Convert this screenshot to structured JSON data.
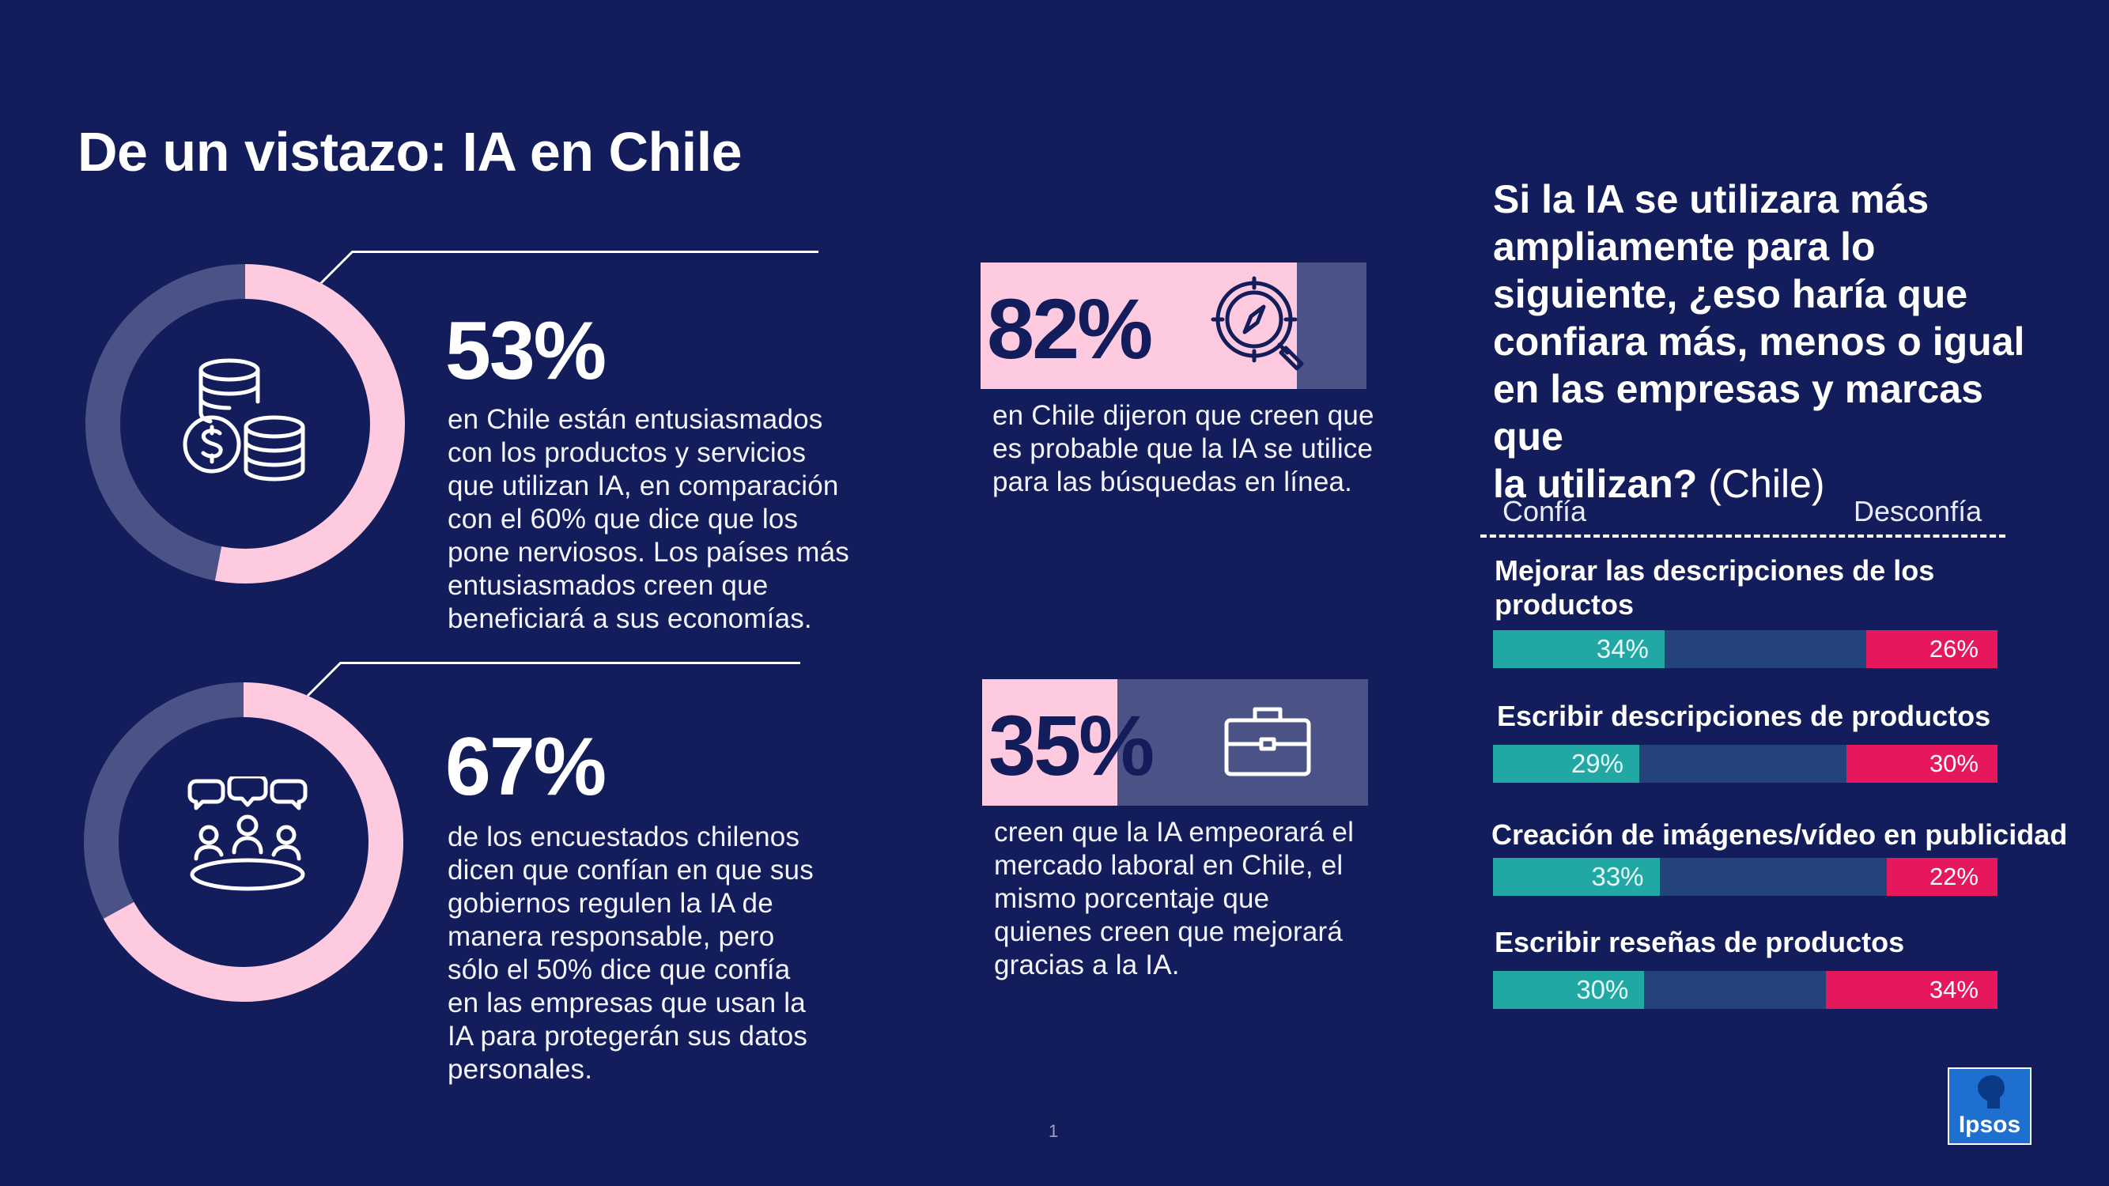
{
  "title": "De un vistazo: IA en Chile",
  "colors": {
    "background": "#131d5c",
    "pink": "#fdcadf",
    "slate": "#4a5286",
    "teal": "#22a8a4",
    "mid": "#23437a",
    "red": "#e6175a"
  },
  "stat1": {
    "value": "53%",
    "fraction": 0.53,
    "icon": "coins-dollar-icon",
    "text": [
      "en Chile están entusiasmados",
      "con los productos y servicios",
      "que utilizan IA, en comparación",
      "con el 60% que dice que los",
      "pone nerviosos. Los países más",
      "entusiasmados creen que",
      "beneficiará a sus economías."
    ]
  },
  "stat2": {
    "value": "67%",
    "fraction": 0.67,
    "icon": "group-discussion-icon",
    "text": [
      "de los encuestados chilenos",
      "dicen que confían en que sus",
      "gobiernos regulen la IA de",
      "manera responsable, pero",
      "sólo el 50% dice que confía",
      "en las empresas que usan la",
      "IA para protegerán sus datos",
      "personales."
    ]
  },
  "stat3": {
    "value": "82%",
    "fraction": 0.82,
    "icon": "compass-search-icon",
    "text": [
      "en Chile dijeron que creen que",
      "es probable que la IA se utilice",
      "para las búsquedas en línea."
    ]
  },
  "stat4": {
    "value": "35%",
    "fraction": 0.35,
    "icon": "briefcase-icon",
    "text": [
      "creen que la IA empeorará el",
      "mercado laboral en Chile, el",
      "mismo porcentaje que",
      "quienes creen que mejorará",
      "gracias a la IA."
    ]
  },
  "question": {
    "lines": [
      "Si la IA se utilizara más",
      "ampliamente para lo",
      "siguiente, ¿eso haría que",
      "confiara más, menos o igual",
      "en las empresas y marcas que"
    ],
    "last_bold": "la utilizan?",
    "last_suffix": "(Chile)"
  },
  "legend": {
    "left": "Confía",
    "right": "Desconfía"
  },
  "chart_data": {
    "type": "bar",
    "orientation": "horizontal-stacked",
    "categories": [
      "Mejorar las descripciones de los productos",
      "Escribir descripciones de productos",
      "Creación de imágenes/vídeo en publicidad",
      "Escribir reseñas de productos"
    ],
    "series": [
      {
        "name": "Confía",
        "values": [
          34,
          29,
          33,
          30
        ],
        "labels": [
          "34%",
          "29%",
          "33%",
          "30%"
        ]
      },
      {
        "name": "Desconfía",
        "values": [
          26,
          30,
          22,
          34
        ],
        "labels": [
          "26%",
          "30%",
          "22%",
          "34%"
        ]
      }
    ],
    "rows": [
      {
        "label_lines": [
          "Mejorar las descripciones de los",
          "productos"
        ]
      },
      {
        "label_lines": [
          "Escribir descripciones de productos"
        ]
      },
      {
        "label_lines": [
          "Creación de imágenes/vídeo en publicidad"
        ]
      },
      {
        "label_lines": [
          "Escribir reseñas de productos"
        ]
      }
    ]
  },
  "logo": {
    "text": "Ipsos"
  },
  "page_number": "1"
}
